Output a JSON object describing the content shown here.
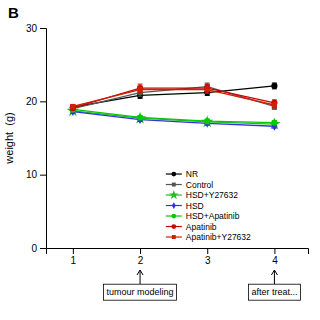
{
  "chart_data": {
    "type": "line",
    "title": "B",
    "ylabel": "weight  (g)",
    "x": [
      1,
      2,
      3,
      4
    ],
    "xlim": [
      0.6,
      4.5
    ],
    "xticks": [
      1,
      2,
      3,
      4
    ],
    "ylim": [
      0,
      30
    ],
    "yticks": [
      0,
      10,
      20,
      30
    ],
    "grid": false,
    "legend": "bottom",
    "series": [
      {
        "name": "NR",
        "color": "#000000",
        "marker": "circle",
        "line_style": "solid",
        "values": [
          19.2,
          20.8,
          21.2,
          22.1
        ],
        "yerr": [
          0.25,
          0.4,
          0.4,
          0.4
        ]
      },
      {
        "name": "Control",
        "color": "#555555",
        "marker": "square",
        "line_style": "solid",
        "values": [
          19.0,
          21.2,
          22.0,
          19.3
        ],
        "yerr": [
          0.25,
          0.5,
          0.5,
          0.4
        ]
      },
      {
        "name": "HSD+Y27632",
        "color": "#22bb22",
        "marker": "star",
        "line_style": "solid",
        "values": [
          18.7,
          17.7,
          17.2,
          16.9
        ],
        "yerr": [
          0.25,
          0.25,
          0.25,
          0.25
        ]
      },
      {
        "name": "HSD",
        "color": "#3333dd",
        "marker": "diamond",
        "line_style": "solid",
        "values": [
          18.6,
          17.5,
          17.0,
          16.6
        ],
        "yerr": [
          0.25,
          0.25,
          0.25,
          0.25
        ]
      },
      {
        "name": "HSD+Apatinib",
        "color": "#00cc00",
        "marker": "circle",
        "line_style": "solid",
        "values": [
          18.9,
          17.8,
          17.3,
          17.1
        ],
        "yerr": [
          0.25,
          0.25,
          0.25,
          0.25
        ]
      },
      {
        "name": "Apatinib",
        "color": "#cc0000",
        "marker": "circle",
        "line_style": "solid",
        "values": [
          19.1,
          21.8,
          21.8,
          19.8
        ],
        "yerr": [
          0.25,
          0.55,
          0.55,
          0.4
        ]
      },
      {
        "name": "Apatinib+Y27632",
        "color": "#cc2200",
        "marker": "square",
        "line_style": "solid",
        "values": [
          19.3,
          21.6,
          21.6,
          19.5
        ],
        "yerr": [
          0.25,
          0.5,
          0.5,
          0.4
        ]
      }
    ],
    "annotations": [
      {
        "text": "tumour modeling",
        "x": 2
      },
      {
        "text": "after treat...",
        "x": 4
      }
    ]
  }
}
